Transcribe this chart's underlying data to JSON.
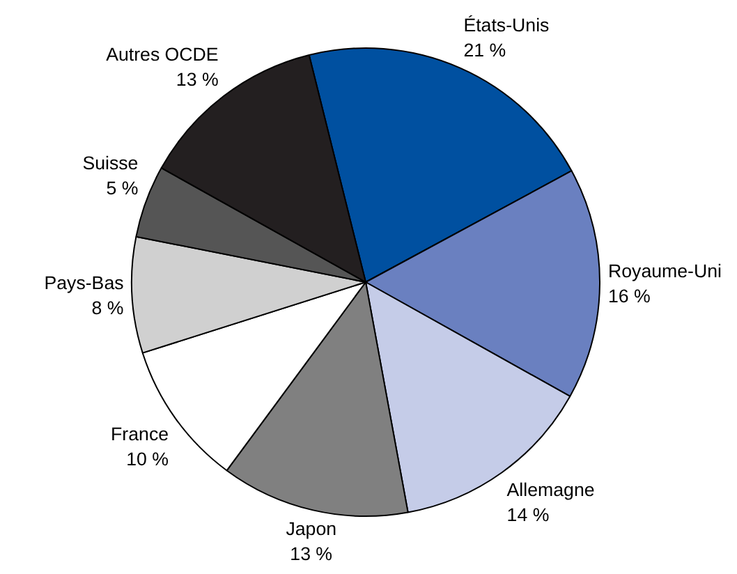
{
  "chart_data": {
    "type": "pie",
    "categories": [
      "États-Unis",
      "Royaume-Uni",
      "Allemagne",
      "Japon",
      "France",
      "Pays-Bas",
      "Suisse",
      "Autres OCDE"
    ],
    "values": [
      21,
      16,
      14,
      13,
      10,
      8,
      5,
      13
    ],
    "value_labels": [
      "21 %",
      "16 %",
      "14 %",
      "13 %",
      "10 %",
      "8 %",
      "5 %",
      "13 %"
    ],
    "colors": [
      "#0050a0",
      "#6a80c0",
      "#c5cce8",
      "#808080",
      "#ffffff",
      "#d0d0d0",
      "#555555",
      "#231f20"
    ]
  }
}
